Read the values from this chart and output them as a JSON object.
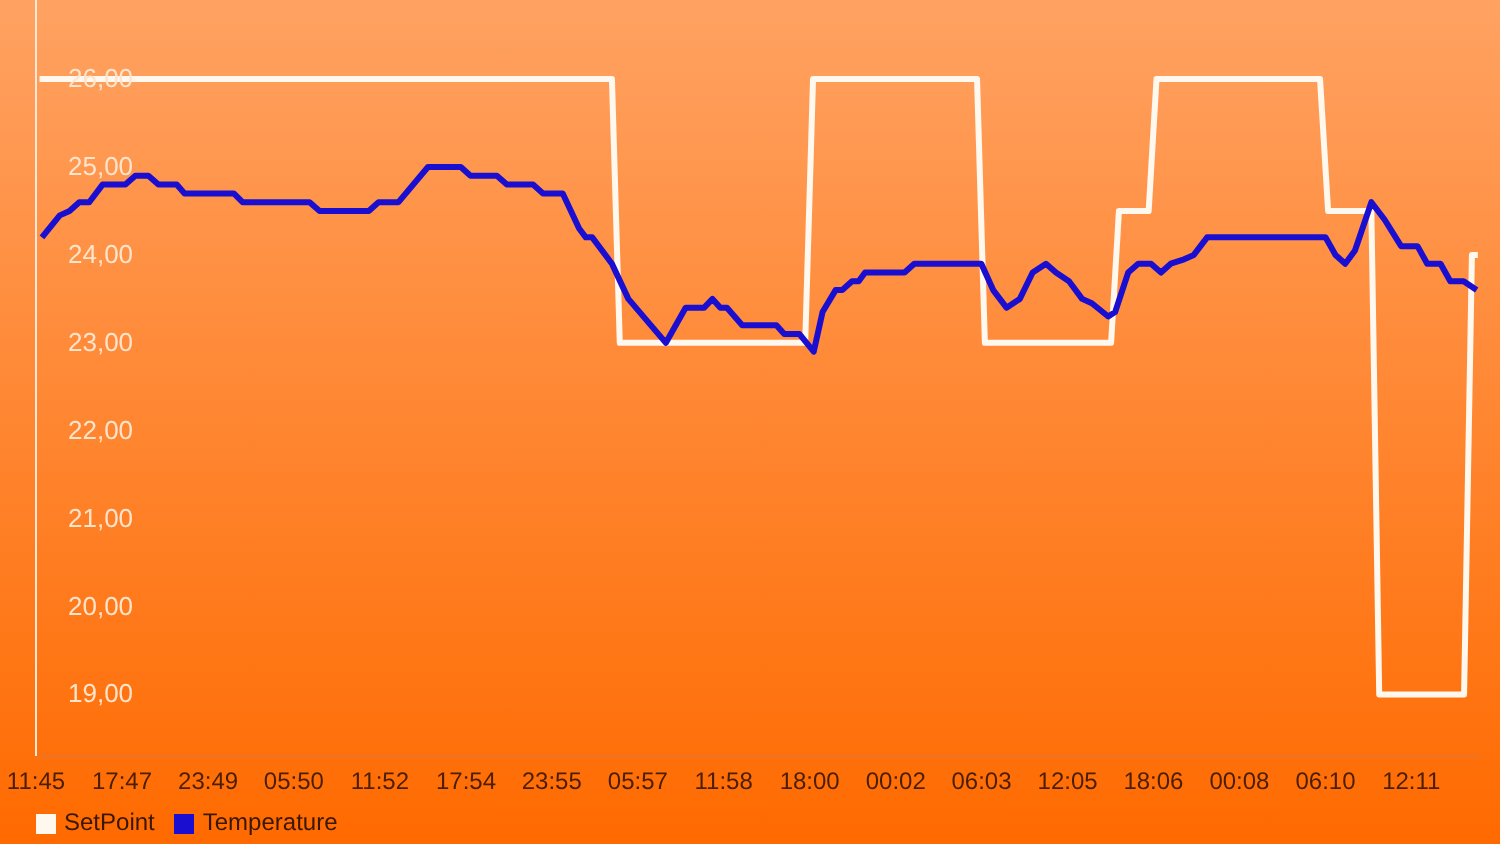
{
  "chart_data": {
    "type": "line",
    "legend": "bottom left",
    "grid": false,
    "marker": "none",
    "line_style": "solid",
    "xlim": [
      "--01-01T11:45",
      "--01-05T17:00"
    ],
    "xticks": [
      {
        "value": "--01-01T11:45",
        "label": "11:45"
      },
      {
        "value": "--01-01T17:47",
        "label": "17:47"
      },
      {
        "value": "--01-01T23:49",
        "label": "23:49"
      },
      {
        "value": "--01-02T05:50",
        "label": "05:50"
      },
      {
        "value": "--01-02T11:52",
        "label": "11:52"
      },
      {
        "value": "--01-02T17:54",
        "label": "17:54"
      },
      {
        "value": "--01-02T23:55",
        "label": "23:55"
      },
      {
        "value": "--01-03T05:57",
        "label": "05:57"
      },
      {
        "value": "--01-03T11:58",
        "label": "11:58"
      },
      {
        "value": "--01-03T18:00",
        "label": "18:00"
      },
      {
        "value": "--01-04T00:02",
        "label": "00:02"
      },
      {
        "value": "--01-04T06:03",
        "label": "06:03"
      },
      {
        "value": "--01-04T12:05",
        "label": "12:05"
      },
      {
        "value": "--01-04T18:06",
        "label": "18:06"
      },
      {
        "value": "--01-05T00:08",
        "label": "00:08"
      },
      {
        "value": "--01-05T06:10",
        "label": "06:10"
      },
      {
        "value": "--01-05T12:11",
        "label": "12:11"
      }
    ],
    "ylim": [
      18.3,
      26.9
    ],
    "yticks": [
      {
        "value": 19,
        "label": "19,00"
      },
      {
        "value": 20,
        "label": "20,00"
      },
      {
        "value": 21,
        "label": "21,00"
      },
      {
        "value": 22,
        "label": "22,00"
      },
      {
        "value": 23,
        "label": "23,00"
      },
      {
        "value": 24,
        "label": "24,00"
      },
      {
        "value": 25,
        "label": "25,00"
      },
      {
        "value": 26,
        "label": "26,00"
      }
    ],
    "series": [
      {
        "name": "SetPoint",
        "color": "#fff8ee",
        "x": [
          "--01-01T12:00",
          "--01-03T04:08",
          "--01-03T04:41",
          "--01-03T17:41",
          "--01-03T18:14",
          "--01-04T05:44",
          "--01-04T06:17",
          "--01-04T15:08",
          "--01-04T15:41",
          "--01-04T17:46",
          "--01-04T18:19",
          "--01-05T05:47",
          "--01-05T06:21",
          "--01-05T09:23",
          "--01-05T09:56",
          "--01-05T15:53",
          "--01-05T16:26",
          "--01-05T16:51"
        ],
        "values": [
          26,
          26,
          23,
          23,
          26,
          26,
          23,
          23,
          24.5,
          24.5,
          26,
          26,
          24.5,
          24.5,
          19,
          19,
          24,
          24
        ]
      },
      {
        "name": "Temperature",
        "color": "#1a0fd0",
        "x": [
          "--01-01T12:10",
          "--01-01T13:25",
          "--01-01T14:06",
          "--01-01T14:47",
          "--01-01T15:29",
          "--01-01T16:25",
          "--01-01T18:01",
          "--01-01T18:43",
          "--01-01T19:38",
          "--01-01T20:20",
          "--01-01T21:37",
          "--01-01T22:10",
          "--01-02T01:37",
          "--01-02T02:14",
          "--01-02T06:56",
          "--01-02T07:38",
          "--01-02T11:05",
          "--01-02T11:46",
          "--01-02T13:10",
          "--01-02T15:14",
          "--01-02T17:32",
          "--01-02T18:13",
          "--01-02T20:04",
          "--01-02T20:46",
          "--01-02T22:36",
          "--01-02T23:18",
          "--01-03T00:41",
          "--01-03T01:50",
          "--01-03T02:18",
          "--01-03T02:45",
          "--01-03T04:08",
          "--01-03T05:17",
          "--01-03T07:55",
          "--01-03T09:18",
          "--01-03T10:36",
          "--01-03T11:11",
          "--01-03T11:44",
          "--01-03T12:12",
          "--01-03T13:16",
          "--01-03T15:40",
          "--01-03T16:13",
          "--01-03T17:17",
          "--01-03T18:17",
          "--01-03T18:54",
          "--01-03T19:49",
          "--01-03T20:17",
          "--01-03T20:58",
          "--01-03T21:26",
          "--01-03T21:53",
          "--01-04T00:39",
          "--01-04T01:20",
          "--01-04T06:02",
          "--01-04T06:52",
          "--01-04T07:48",
          "--01-04T08:44",
          "--01-04T09:38",
          "--01-04T10:34",
          "--01-04T11:16",
          "--01-04T12:11",
          "--01-04T13:06",
          "--01-04T13:47",
          "--01-04T14:56",
          "--01-04T15:25",
          "--01-04T16:20",
          "--01-04T17:02",
          "--01-04T17:56",
          "--01-04T18:38",
          "--01-04T19:19",
          "--01-04T20:15",
          "--01-04T20:56",
          "--01-04T21:52",
          "--01-05T06:10",
          "--01-05T06:52",
          "--01-05T07:33",
          "--01-05T08:14",
          "--01-05T09:23",
          "--01-05T10:19",
          "--01-05T11:28",
          "--01-05T12:37",
          "--01-05T13:18",
          "--01-05T14:14",
          "--01-05T14:55",
          "--01-05T15:51",
          "--01-05T16:46"
        ],
        "values": [
          24.2,
          24.45,
          24.5,
          24.6,
          24.6,
          24.8,
          24.8,
          24.9,
          24.9,
          24.8,
          24.8,
          24.7,
          24.7,
          24.6,
          24.6,
          24.5,
          24.5,
          24.6,
          24.6,
          25.0,
          25.0,
          24.9,
          24.9,
          24.8,
          24.8,
          24.7,
          24.7,
          24.3,
          24.2,
          24.2,
          23.9,
          23.5,
          23.0,
          23.4,
          23.4,
          23.5,
          23.4,
          23.4,
          23.2,
          23.2,
          23.1,
          23.1,
          22.9,
          23.35,
          23.6,
          23.6,
          23.7,
          23.7,
          23.8,
          23.8,
          23.9,
          23.9,
          23.6,
          23.4,
          23.5,
          23.8,
          23.9,
          23.8,
          23.7,
          23.5,
          23.45,
          23.3,
          23.35,
          23.8,
          23.9,
          23.9,
          23.8,
          23.9,
          23.95,
          24.0,
          24.2,
          24.2,
          24.0,
          23.9,
          24.05,
          24.6,
          24.4,
          24.1,
          24.1,
          23.9,
          23.9,
          23.7,
          23.7,
          23.6
        ]
      }
    ]
  }
}
